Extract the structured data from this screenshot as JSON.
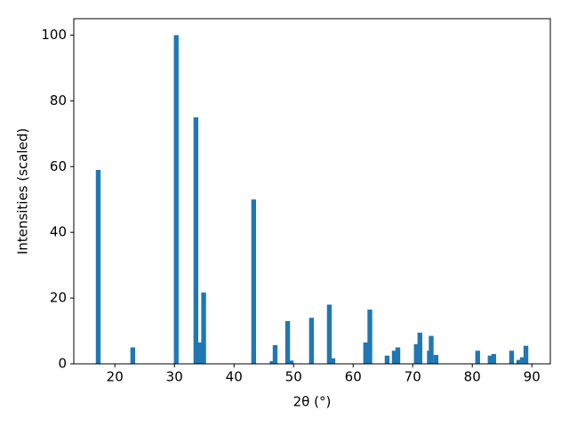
{
  "chart_data": {
    "type": "bar",
    "xlabel": "2θ (°)",
    "ylabel": "Intensities (scaled)",
    "color": "#1f77b4",
    "x": [
      17.2,
      23.0,
      30.3,
      33.6,
      34.3,
      34.9,
      43.3,
      46.4,
      46.9,
      49.0,
      49.6,
      53.0,
      56.0,
      56.6,
      62.1,
      62.8,
      65.7,
      66.9,
      67.5,
      70.6,
      71.2,
      72.8,
      73.1,
      73.9,
      80.9,
      83.0,
      83.6,
      86.6,
      87.8,
      88.4,
      89.0
    ],
    "values": [
      59,
      5,
      100,
      75,
      6.5,
      21.7,
      50,
      0.8,
      5.7,
      13,
      1,
      14,
      18,
      1.7,
      6.5,
      16.5,
      2.5,
      4,
      5,
      6,
      9.5,
      4,
      8.5,
      2.7,
      4,
      2.5,
      3,
      4,
      1.2,
      2,
      5.5
    ],
    "xlim": [
      13.1,
      93.1
    ],
    "ylim": [
      0,
      105
    ],
    "xticks": [
      20,
      30,
      40,
      50,
      60,
      70,
      80,
      90
    ],
    "yticks": [
      0,
      20,
      40,
      60,
      80,
      100
    ]
  }
}
